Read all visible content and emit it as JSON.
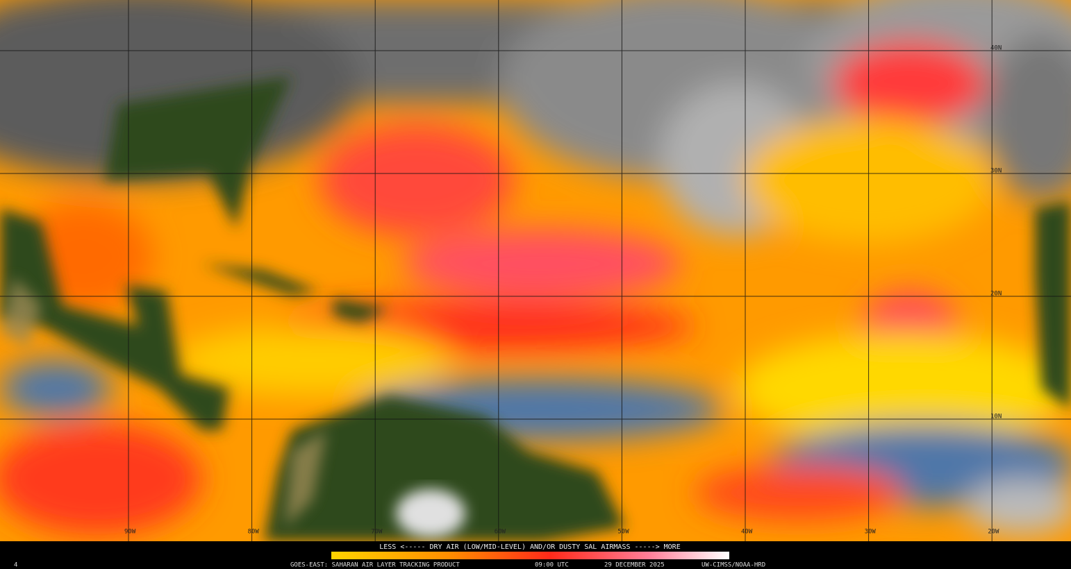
{
  "map": {
    "lat_labels": [
      "40N",
      "30N",
      "20N",
      "10N"
    ],
    "lon_labels": [
      "90W",
      "80W",
      "70W",
      "60W",
      "50W",
      "40W",
      "30W",
      "20W"
    ],
    "legend": "LESS <----- DRY AIR (LOW/MID-LEVEL) AND/OR DUSTY SAL AIRMASS -----> MORE",
    "footer": {
      "frame": "4",
      "product": "GOES-EAST: SAHARAN AIR LAYER TRACKING PRODUCT",
      "time": "09:00 UTC",
      "date": "29 DECEMBER 2025",
      "credit": "UW-CIMSS/NOAA-HRD"
    }
  }
}
